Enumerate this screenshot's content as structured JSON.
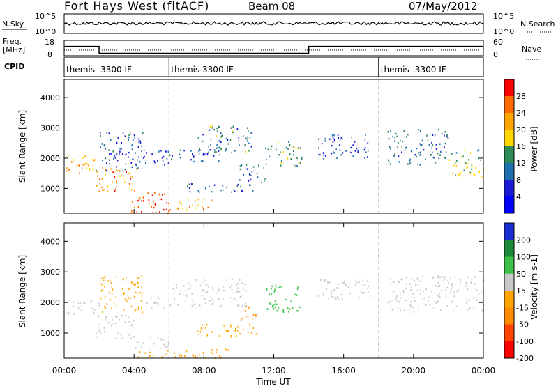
{
  "header": {
    "station": "Fort Hays West (fitACF)",
    "beam": "Beam 08",
    "date": "07/May/2012"
  },
  "noise_panel": {
    "left_label": "N.Sky",
    "right_label": "N.Search",
    "left_ticks": [
      "10^5",
      "10^0"
    ],
    "right_ticks": [
      "10^5",
      "10^0"
    ]
  },
  "freq_panel": {
    "left_label_1": "Freq.",
    "left_label_2": "[MHz]",
    "right_label": "Nave",
    "left_ticks": [
      "18",
      "8"
    ],
    "right_ticks": [
      "60",
      "0"
    ],
    "freq_steps": [
      {
        "from": 0.0,
        "to": 2.0,
        "value": 15
      },
      {
        "from": 2.0,
        "to": 14.0,
        "value": 10.5
      },
      {
        "from": 14.0,
        "to": 24.0,
        "value": 15
      }
    ]
  },
  "cpid_panel": {
    "label": "CPID",
    "segments": [
      {
        "start": 0.0,
        "text": "themis -3300 IF"
      },
      {
        "start": 6.0,
        "text": "themis 3300 IF"
      },
      {
        "start": 18.0,
        "text": "themis -3300 IF"
      }
    ]
  },
  "x_axis": {
    "title": "Time UT",
    "ticks": [
      "00:00",
      "04:00",
      "08:00",
      "12:00",
      "16:00",
      "20:00",
      "00:00"
    ]
  },
  "chart_data": [
    {
      "type": "heatmap",
      "name": "power",
      "ylabel": "Slant Range [km]",
      "ylim": [
        180,
        4600
      ],
      "xlim": [
        0,
        24
      ],
      "yticks": [
        "1000",
        "2000",
        "3000",
        "4000"
      ],
      "colorbar": {
        "label": "Power [dB]",
        "tick_labels": [
          "28",
          "24",
          "20",
          "16",
          "12",
          "8",
          "4"
        ],
        "colors": [
          "#ff0000",
          "#ff6a00",
          "#ffa500",
          "#ffd700",
          "#2e8b57",
          "#1e6fb0",
          "#1a1ad6",
          "#0000ff"
        ]
      },
      "regions": [
        {
          "t0": 0.0,
          "t1": 2.0,
          "r0": 1500,
          "r1": 2100,
          "level": 18
        },
        {
          "t0": 1.8,
          "t1": 4.2,
          "r0": 900,
          "r1": 1700,
          "level": 22
        },
        {
          "t0": 2.0,
          "t1": 4.5,
          "r0": 1600,
          "r1": 2900,
          "level": 6
        },
        {
          "t0": 4.5,
          "t1": 6.2,
          "r0": 1800,
          "r1": 2300,
          "level": 5
        },
        {
          "t0": 3.8,
          "t1": 6.2,
          "r0": 200,
          "r1": 900,
          "level": 26
        },
        {
          "t0": 6.0,
          "t1": 8.5,
          "r0": 300,
          "r1": 700,
          "level": 20
        },
        {
          "t0": 6.0,
          "t1": 9.0,
          "r0": 1900,
          "r1": 2300,
          "level": 6
        },
        {
          "t0": 7.5,
          "t1": 10.8,
          "r0": 2200,
          "r1": 3100,
          "level": 10
        },
        {
          "t0": 7.0,
          "t1": 11.0,
          "r0": 900,
          "r1": 1200,
          "level": 7
        },
        {
          "t0": 10.0,
          "t1": 11.5,
          "r0": 1200,
          "r1": 1800,
          "level": 8
        },
        {
          "t0": 11.5,
          "t1": 13.6,
          "r0": 1700,
          "r1": 2600,
          "level": 12
        },
        {
          "t0": 14.5,
          "t1": 17.5,
          "r0": 2000,
          "r1": 2800,
          "level": 5
        },
        {
          "t0": 18.5,
          "t1": 22.0,
          "r0": 1800,
          "r1": 3000,
          "level": 9
        },
        {
          "t0": 22.0,
          "t1": 24.0,
          "r0": 1400,
          "r1": 2300,
          "level": 14
        }
      ]
    },
    {
      "type": "heatmap",
      "name": "velocity",
      "ylabel": "Slant Range [km]",
      "ylim": [
        180,
        4600
      ],
      "xlim": [
        0,
        24
      ],
      "yticks": [
        "1000",
        "2000",
        "3000",
        "4000"
      ],
      "colorbar": {
        "label": "Velocity [m s-1]",
        "tick_labels": [
          "200",
          "100",
          "50",
          "15",
          "-15",
          "-50",
          "-100",
          "-200"
        ],
        "colors": [
          "#1a2fd0",
          "#1e8a3a",
          "#3cc24a",
          "#c8c8c8",
          "#ffa500",
          "#ff8c00",
          "#ff4500",
          "#ff0000"
        ]
      },
      "regions": [
        {
          "t0": 0.0,
          "t1": 2.0,
          "r0": 1600,
          "r1": 2100,
          "level": 0
        },
        {
          "t0": 1.8,
          "t1": 4.0,
          "r0": 850,
          "r1": 1600,
          "level": 0
        },
        {
          "t0": 2.0,
          "t1": 4.5,
          "r0": 1700,
          "r1": 2900,
          "level": -40
        },
        {
          "t0": 4.5,
          "t1": 6.2,
          "r0": 1800,
          "r1": 2200,
          "level": 0
        },
        {
          "t0": 3.8,
          "t1": 6.0,
          "r0": 500,
          "r1": 900,
          "level": 0
        },
        {
          "t0": 3.8,
          "t1": 9.5,
          "r0": 200,
          "r1": 500,
          "level": -40
        },
        {
          "t0": 6.2,
          "t1": 10.5,
          "r0": 1900,
          "r1": 2800,
          "level": 0
        },
        {
          "t0": 7.5,
          "t1": 11.0,
          "r0": 900,
          "r1": 1300,
          "level": -40
        },
        {
          "t0": 10.0,
          "t1": 11.0,
          "r0": 1300,
          "r1": 1900,
          "level": -80
        },
        {
          "t0": 11.5,
          "t1": 13.5,
          "r0": 1700,
          "r1": 2600,
          "level": 40
        },
        {
          "t0": 14.5,
          "t1": 17.5,
          "r0": 2100,
          "r1": 2800,
          "level": 0
        },
        {
          "t0": 18.5,
          "t1": 24.0,
          "r0": 1700,
          "r1": 2900,
          "level": 0
        }
      ]
    }
  ]
}
